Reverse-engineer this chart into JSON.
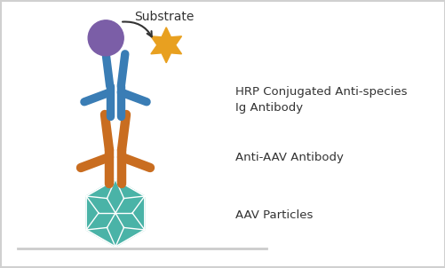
{
  "bg_color": "#ffffff",
  "blue_antibody_color": "#3a7db5",
  "orange_antibody_color": "#c96d20",
  "teal_particle_color": "#3aada0",
  "purple_circle_color": "#7b5ea7",
  "gold_star_color": "#e8a020",
  "label1": "Substrate",
  "label2": "HRP Conjugated Anti-species\nIg Antibody",
  "label3": "Anti-AAV Antibody",
  "label4": "AAV Particles",
  "label_fontsize": 9.5,
  "label_color": "#333333",
  "border_color": "#d0d0d0",
  "line_color": "#cccccc"
}
